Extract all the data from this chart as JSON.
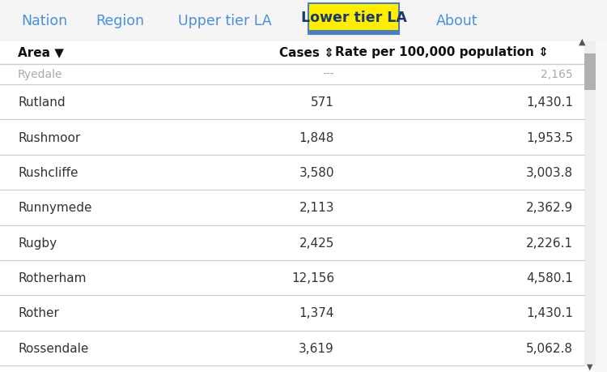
{
  "nav_items": [
    "Nation",
    "Region",
    "Upper tier LA",
    "Lower tier LA",
    "About"
  ],
  "active_nav": "Lower tier LA",
  "nav_color": "#4a90d9",
  "active_nav_text_color": "#1a3a6b",
  "active_nav_bg": "#ffee00",
  "active_nav_border": "#4a7fc1",
  "active_nav_bottom_stripe": "#4a7fc1",
  "col_headers": [
    "Area ▼",
    "Cases ⇕",
    "Rate per 100,000 population ⇕"
  ],
  "partial_row": [
    "Ryedale",
    "---",
    "2,165"
  ],
  "rows": [
    [
      "Rutland",
      "571",
      "1,430.1"
    ],
    [
      "Rushmoor",
      "1,848",
      "1,953.5"
    ],
    [
      "Rushcliffe",
      "3,580",
      "3,003.8"
    ],
    [
      "Runnymede",
      "2,113",
      "2,362.9"
    ],
    [
      "Rugby",
      "2,425",
      "2,226.1"
    ],
    [
      "Rotherham",
      "12,156",
      "4,580.1"
    ],
    [
      "Rother",
      "1,374",
      "1,430.1"
    ],
    [
      "Rossendale",
      "3,619",
      "5,062.8"
    ]
  ],
  "bg_color": "#f8f8f8",
  "row_divider_color": "#cccccc",
  "text_color": "#333333",
  "header_text_color": "#111111",
  "font_size_nav": 12.5,
  "font_size_header": 11,
  "font_size_row": 11,
  "scrollbar_track": "#eeeeee",
  "scrollbar_thumb": "#b0b0b0",
  "partial_row_color": "#aaaaaa",
  "nav_bar_bg": "#f0f0f0",
  "table_bg": "#ffffff"
}
